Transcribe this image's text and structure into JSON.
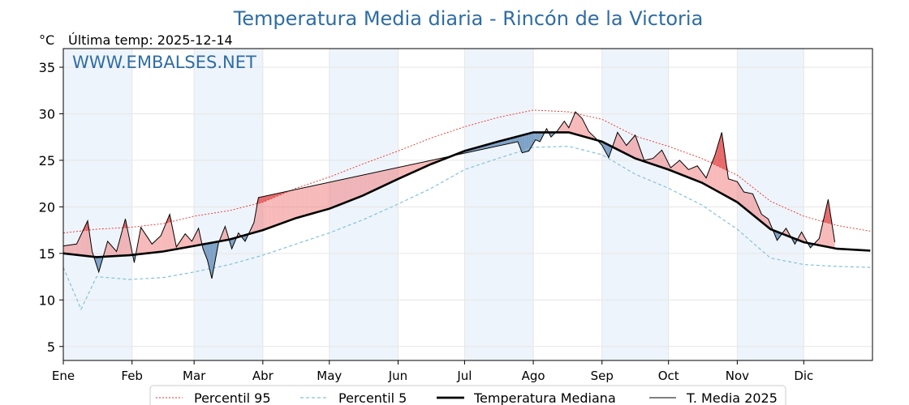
{
  "chart_data": {
    "type": "line",
    "title": "Temperatura Media diaria - Rincón de la Victoria",
    "unit_label": "°C",
    "last_temp_label": "Última temp: 2025-12-14",
    "watermark": "WWW.EMBALSES.NET",
    "ylim": [
      3.5,
      37
    ],
    "yticks": [
      5,
      10,
      15,
      20,
      25,
      30,
      35
    ],
    "months": [
      "Ene",
      "Feb",
      "Mar",
      "Abr",
      "May",
      "Jun",
      "Jul",
      "Ago",
      "Sep",
      "Oct",
      "Nov",
      "Dic"
    ],
    "month_days": [
      0,
      31,
      59,
      90,
      120,
      151,
      181,
      212,
      243,
      273,
      304,
      334
    ],
    "grid": true,
    "legend_position": "bottom",
    "legend": [
      "Percentil 95",
      "Percentil 5",
      "Temperatura Mediana",
      "T. Media 2025"
    ],
    "colors": {
      "p95": "#e8302a",
      "p5": "#84c2d8",
      "median": "#000000",
      "t2025": "#000000",
      "above_fill": "#f08080",
      "below_fill": "#4f7faf",
      "shade": "#eef4fb",
      "title": "#2e6da4"
    },
    "series": {
      "median": {
        "name": "Temperatura Mediana",
        "x": [
          0,
          15,
          30,
          45,
          59,
          75,
          90,
          105,
          120,
          135,
          151,
          166,
          181,
          196,
          212,
          228,
          243,
          258,
          273,
          288,
          304,
          319,
          334,
          349,
          364
        ],
        "y": [
          15.0,
          14.6,
          14.8,
          15.2,
          15.8,
          16.5,
          17.5,
          18.8,
          19.8,
          21.2,
          23.0,
          24.6,
          26.0,
          27.0,
          28.0,
          28.0,
          27.0,
          25.2,
          24.0,
          22.6,
          20.5,
          17.6,
          16.2,
          15.5,
          15.3
        ]
      },
      "p95": {
        "name": "Percentil 95",
        "x": [
          0,
          15,
          30,
          45,
          59,
          75,
          90,
          105,
          120,
          135,
          151,
          166,
          181,
          196,
          212,
          228,
          243,
          258,
          273,
          288,
          304,
          319,
          334,
          349,
          364
        ],
        "y": [
          17.2,
          17.6,
          17.8,
          18.2,
          19.0,
          19.6,
          20.5,
          22.0,
          23.2,
          24.6,
          26.0,
          27.4,
          28.6,
          29.6,
          30.4,
          30.2,
          29.4,
          27.6,
          26.5,
          25.2,
          23.4,
          20.6,
          19.0,
          18.0,
          17.4
        ]
      },
      "p5": {
        "name": "Percentil 5",
        "x": [
          0,
          8,
          15,
          30,
          45,
          59,
          75,
          90,
          105,
          120,
          135,
          151,
          166,
          181,
          196,
          212,
          228,
          243,
          258,
          273,
          288,
          304,
          319,
          334,
          349,
          364
        ],
        "y": [
          13.5,
          9.0,
          12.5,
          12.2,
          12.4,
          13.0,
          13.8,
          14.8,
          16.0,
          17.2,
          18.6,
          20.3,
          22.0,
          24.0,
          25.2,
          26.4,
          26.5,
          25.6,
          23.5,
          22.0,
          20.2,
          17.6,
          14.5,
          13.8,
          13.6,
          13.5
        ]
      },
      "t2025": {
        "name": "T. Media 2025",
        "x": [
          0,
          6,
          11,
          13,
          16,
          20,
          24,
          28,
          32,
          35,
          40,
          44,
          48,
          51,
          55,
          58,
          61,
          63,
          65,
          67,
          70,
          73,
          76,
          79,
          82,
          86,
          88,
          205,
          207,
          210,
          213,
          215,
          218,
          220,
          223,
          226,
          228,
          231,
          234,
          237,
          240,
          243,
          246,
          250,
          254,
          258,
          262,
          266,
          270,
          274,
          278,
          282,
          286,
          290,
          294,
          297,
          300,
          304,
          307,
          311,
          315,
          318,
          322,
          326,
          330,
          333,
          337,
          341,
          345,
          348
        ],
        "y": [
          15.8,
          16.0,
          18.5,
          15.2,
          13.0,
          16.3,
          15.2,
          18.7,
          14.0,
          17.8,
          16.0,
          16.9,
          19.2,
          15.7,
          17.1,
          16.3,
          17.7,
          15.5,
          14.3,
          12.3,
          16.1,
          17.9,
          15.5,
          17.2,
          16.3,
          18.3,
          21.0,
          27.0,
          25.8,
          26.0,
          27.2,
          27.0,
          28.4,
          27.5,
          28.2,
          29.2,
          28.5,
          30.2,
          29.5,
          28.1,
          27.4,
          26.6,
          25.3,
          28.0,
          26.6,
          27.7,
          25.0,
          25.2,
          26.1,
          24.2,
          25.0,
          24.0,
          24.4,
          23.1,
          25.6,
          28.0,
          23.0,
          22.7,
          21.6,
          21.4,
          19.2,
          18.7,
          16.4,
          17.7,
          16.0,
          17.3,
          15.6,
          16.6,
          20.8,
          16.2
        ]
      }
    }
  }
}
